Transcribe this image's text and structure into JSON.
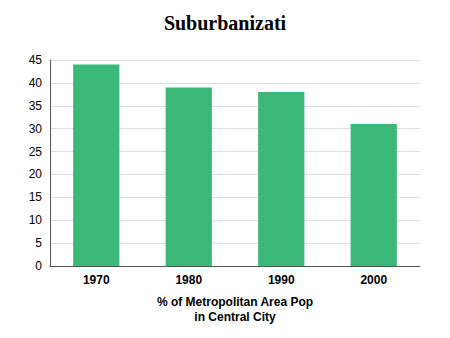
{
  "chart_data": {
    "type": "bar",
    "title": "Suburbanizati",
    "categories": [
      "1970",
      "1980",
      "1990",
      "2000"
    ],
    "values": [
      44,
      39,
      38,
      31
    ],
    "color": "#3CB878",
    "xlabel": "% of Metropolitan Area Pop\nin Central City",
    "ylim": [
      0,
      45
    ],
    "yticks": [
      0,
      5,
      10,
      15,
      20,
      25,
      30,
      35,
      40,
      45
    ],
    "grid": true
  }
}
